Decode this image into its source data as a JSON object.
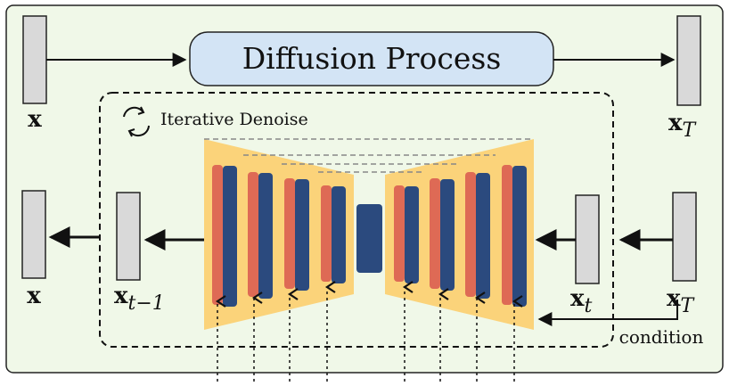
{
  "title": "Diffusion Process",
  "loop_label": "Iterative Denoise",
  "condition_label": "condition",
  "labels": {
    "x": "x",
    "x_T": "x",
    "T": "T",
    "x_prev": "x",
    "prev_sub": "t−1",
    "x_t": "x",
    "t_sub": "t"
  },
  "colors": {
    "panel_bg": "#f0f8e8",
    "process_box": "#d3e4f5",
    "unet_fill": "#fbd37a",
    "red_bar": "#de6a55",
    "blue_bar": "#2b4a7e",
    "bottleneck": "#2b4a7e",
    "data_block": "#d9d9d9",
    "line": "#111111"
  },
  "icons": [
    "refresh-icon"
  ]
}
